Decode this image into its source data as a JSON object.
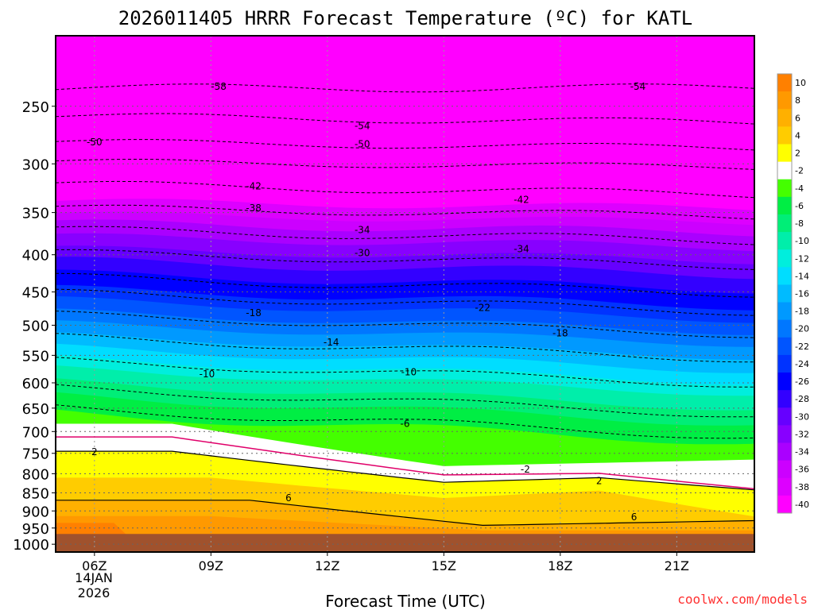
{
  "chart_data": {
    "type": "heatmap",
    "title": "2026011405 HRRR Forecast Temperature (ºC) for KATL",
    "xlabel": "Forecast Time (UTC)",
    "ylabel": "",
    "credit": "coolwx.com/models",
    "x_ticks": [
      "06Z",
      "09Z",
      "12Z",
      "15Z",
      "18Z",
      "21Z"
    ],
    "x_hours": [
      6,
      9,
      12,
      15,
      18,
      21
    ],
    "x_date_line1": "14JAN",
    "x_date_line2": "2026",
    "xlim": [
      5,
      23
    ],
    "y_ticks": [
      250,
      300,
      350,
      400,
      450,
      500,
      550,
      600,
      650,
      700,
      750,
      800,
      850,
      900,
      950,
      1000
    ],
    "y_tick_labels": [
      "250",
      "300",
      "350",
      "400",
      "450",
      "500",
      "550",
      "600",
      "650",
      "700",
      "750",
      "800",
      "850",
      "900",
      "950",
      "1000"
    ],
    "ylim_hpa": [
      200,
      1025
    ],
    "y_scale": "log-pressure",
    "colorbar": {
      "labels": [
        "10",
        "8",
        "6",
        "4",
        "2",
        "-2",
        "-4",
        "-6",
        "-8",
        "-10",
        "-12",
        "-14",
        "-16",
        "-18",
        "-20",
        "-22",
        "-24",
        "-26",
        "-28",
        "-30",
        "-32",
        "-34",
        "-36",
        "-38",
        "-40"
      ],
      "colors": [
        "#ff8000",
        "#ff9900",
        "#ffb000",
        "#ffcc00",
        "#ffff00",
        "#ffffff",
        "#44ff00",
        "#00ee44",
        "#00ee77",
        "#00eeaa",
        "#00eedd",
        "#00ddff",
        "#00bbff",
        "#0099ff",
        "#0077ff",
        "#0055ff",
        "#0033ff",
        "#0000ff",
        "#3300ff",
        "#6600ff",
        "#8800ff",
        "#aa00ff",
        "#cc00ff",
        "#dd00ff",
        "#ff00ff"
      ],
      "ground_color": "#a0522d"
    },
    "contour_labels": [
      {
        "text": "-58",
        "hour": 9.2,
        "hpa": 235
      },
      {
        "text": "-54",
        "hour": 12.9,
        "hpa": 266
      },
      {
        "text": "-54",
        "hour": 20.0,
        "hpa": 235
      },
      {
        "text": "-50",
        "hour": 6.0,
        "hpa": 280
      },
      {
        "text": "-50",
        "hour": 12.9,
        "hpa": 282
      },
      {
        "text": "-42",
        "hour": 10.1,
        "hpa": 322
      },
      {
        "text": "-42",
        "hour": 17.0,
        "hpa": 336
      },
      {
        "text": "-38",
        "hour": 10.1,
        "hpa": 345
      },
      {
        "text": "-34",
        "hour": 12.9,
        "hpa": 370
      },
      {
        "text": "-34",
        "hour": 17.0,
        "hpa": 393
      },
      {
        "text": "-30",
        "hour": 12.9,
        "hpa": 398
      },
      {
        "text": "-22",
        "hour": 16.0,
        "hpa": 473
      },
      {
        "text": "-18",
        "hour": 10.1,
        "hpa": 481
      },
      {
        "text": "-18",
        "hour": 18.0,
        "hpa": 513
      },
      {
        "text": "-14",
        "hour": 12.1,
        "hpa": 528
      },
      {
        "text": "-10",
        "hour": 8.9,
        "hpa": 584
      },
      {
        "text": "-10",
        "hour": 14.1,
        "hpa": 580
      },
      {
        "text": "-6",
        "hour": 14.0,
        "hpa": 683
      },
      {
        "text": "2",
        "hour": 6.0,
        "hpa": 747
      },
      {
        "text": "-2",
        "hour": 17.1,
        "hpa": 789
      },
      {
        "text": "2",
        "hour": 19.0,
        "hpa": 818
      },
      {
        "text": "6",
        "hour": 11.0,
        "hpa": 864
      },
      {
        "text": "6",
        "hour": 19.9,
        "hpa": 918
      }
    ]
  }
}
